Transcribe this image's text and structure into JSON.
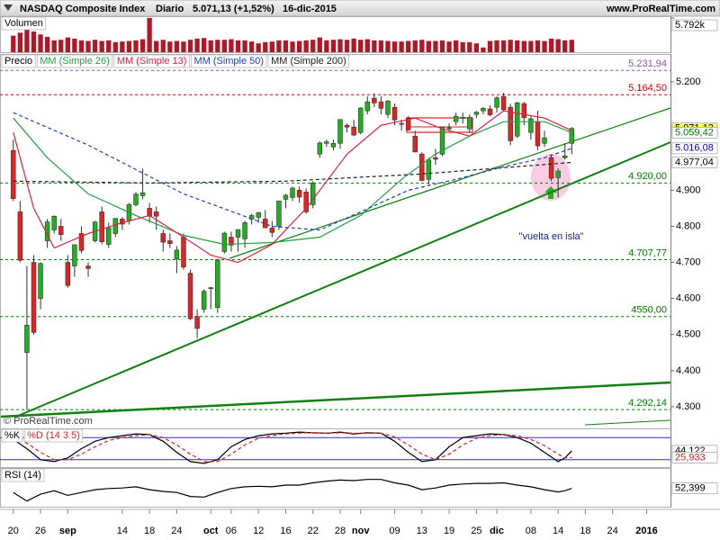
{
  "header": {
    "title": "NASDAQ Composite Index",
    "period": "Diario",
    "price": "5.071,13 (+1,52%)",
    "date": "16-dic-2015",
    "site": "www.ProRealTime.com"
  },
  "chart_data": [
    {
      "type": "bar",
      "title": "Volumen",
      "color": "#b01828",
      "ylim": [
        0,
        5792
      ],
      "yticks": [
        {
          "value": 5792,
          "label": "5.792k"
        }
      ],
      "values": [
        2800,
        3300,
        3900,
        3500,
        3000,
        2600,
        2000,
        2100,
        2500,
        2300,
        2000,
        1900,
        2100,
        1900,
        2000,
        1700,
        1800,
        1900,
        2000,
        2200,
        5792,
        1900,
        2100,
        1800,
        1900,
        1800,
        2100,
        2300,
        2400,
        2000,
        2100,
        2100,
        2200,
        2000,
        2000,
        1800,
        1500,
        1700,
        1800,
        2000,
        2000,
        1800,
        1900,
        2000,
        2100,
        2500,
        2000,
        2100,
        2200,
        2100,
        2300,
        2100,
        2200,
        2000,
        2000,
        1900,
        1800,
        1800,
        1900,
        2000,
        2100,
        1900,
        1900,
        2000,
        1800,
        2000,
        1700,
        1700,
        1500,
        800,
        1900,
        2000,
        2000,
        2100,
        2000,
        1900,
        1900,
        2000,
        1900,
        2300,
        2200,
        2000,
        2100,
        null,
        null,
        null,
        null,
        null,
        null,
        null,
        null,
        null,
        null,
        null,
        null,
        null,
        null
      ]
    },
    {
      "type": "candlestick",
      "title": "Precio",
      "up_color": "#22b022",
      "down_color": "#e82020",
      "copyright": "© ProRealTime.com",
      "annotation": "\"vuelta en isla\"",
      "categories": [
        "20",
        null,
        null,
        null,
        "26",
        null,
        null,
        null,
        "sep",
        null,
        null,
        null,
        null,
        null,
        null,
        null,
        "14",
        null,
        null,
        null,
        "18",
        null,
        null,
        null,
        "24",
        null,
        null,
        null,
        null,
        "oct",
        null,
        null,
        "06",
        null,
        null,
        null,
        "12",
        null,
        null,
        null,
        "16",
        null,
        null,
        null,
        "22",
        null,
        null,
        null,
        "28",
        null,
        null,
        "nov",
        null,
        null,
        null,
        null,
        "09",
        null,
        null,
        null,
        "13",
        null,
        null,
        null,
        "19",
        null,
        null,
        null,
        "25",
        null,
        null,
        "dic",
        null,
        null,
        null,
        null,
        "08",
        null,
        null,
        null,
        "14",
        null,
        null,
        null,
        "18",
        null,
        null,
        null,
        "24",
        null,
        null,
        null,
        null,
        "2016",
        null,
        null,
        null
      ],
      "open": [
        5010,
        4840,
        4450,
        4700,
        4600,
        4760,
        4790,
        4800,
        4700,
        4690,
        4780,
        4690,
        4760,
        4840,
        4750,
        4780,
        4820,
        4815,
        4860,
        4885,
        4850,
        4840,
        4780,
        4760,
        4710,
        4770,
        4670,
        4550,
        4570,
        4630,
        4575,
        4730,
        4770,
        4770,
        4765,
        4820,
        4825,
        4820,
        4795,
        4800,
        4875,
        4880,
        4900,
        4895,
        4860,
        5000,
        5030,
        5020,
        5030,
        5080,
        5075,
        5060,
        5120,
        5155,
        5145,
        5110,
        5130,
        5085,
        5100,
        5050,
        5000,
        4930,
        4990,
        5000,
        5070,
        5090,
        5100,
        5070,
        5110,
        5120,
        5125,
        5130,
        5160,
        5130,
        5050,
        5140,
        5060,
        5090,
        5030,
        4990,
        4935,
        4990,
        5030,
        null,
        null,
        null,
        null,
        null,
        null,
        null,
        null,
        null,
        null,
        null,
        null,
        null,
        null
      ],
      "high": [
        5040,
        4870,
        4690,
        4720,
        4700,
        4820,
        4830,
        4820,
        4720,
        4750,
        4800,
        4700,
        4815,
        4855,
        4810,
        4822,
        4826,
        4865,
        4895,
        4960,
        4865,
        4855,
        4790,
        4780,
        4745,
        4780,
        4680,
        4570,
        4625,
        4632,
        4710,
        4785,
        4785,
        4792,
        4815,
        4835,
        4840,
        4845,
        4815,
        4870,
        4890,
        4910,
        4910,
        4905,
        4925,
        5035,
        5040,
        5040,
        5096,
        5085,
        5095,
        5130,
        5160,
        5168,
        5160,
        5150,
        5140,
        5095,
        5105,
        5065,
        5005,
        4990,
        5015,
        5075,
        5085,
        5115,
        5115,
        5110,
        5120,
        5130,
        5135,
        5160,
        5170,
        5140,
        5145,
        5145,
        5105,
        5120,
        5065,
        5000,
        4960,
        5030,
        5075,
        null,
        null,
        null,
        null,
        null,
        null,
        null,
        null,
        null,
        null,
        null,
        null,
        null,
        null
      ],
      "low": [
        4870,
        4700,
        4292.14,
        4500,
        4570,
        4740,
        4780,
        4760,
        4630,
        4660,
        4725,
        4660,
        4755,
        4750,
        4740,
        4770,
        4790,
        4805,
        4855,
        4875,
        4810,
        4790,
        4730,
        4740,
        4670,
        4680,
        4540,
        4490,
        4560,
        4570,
        4560,
        4725,
        4730,
        4730,
        4740,
        4805,
        4810,
        4795,
        4770,
        4790,
        4850,
        4870,
        4865,
        4835,
        4850,
        4990,
        5020,
        5010,
        5015,
        5060,
        5050,
        5055,
        5110,
        5130,
        5110,
        5100,
        5080,
        5065,
        5065,
        5005,
        4925,
        4915,
        4970,
        4995,
        5065,
        5080,
        5085,
        5060,
        5100,
        5110,
        5105,
        5115,
        5120,
        5025,
        5045,
        5080,
        5040,
        5010,
        5020,
        4925,
        4880,
        4985,
        5000,
        null,
        null,
        null,
        null,
        null,
        null,
        null,
        null,
        null,
        null,
        null,
        null,
        null,
        null
      ],
      "close": [
        4877,
        4706,
        4526,
        4506,
        4697,
        4812,
        4828,
        4777,
        4636,
        4749,
        4733,
        4683,
        4812,
        4757,
        4796,
        4822,
        4806,
        4860,
        4889,
        4893,
        4828,
        4828,
        4756,
        4752,
        4734,
        4687,
        4544,
        4517,
        4620,
        4628,
        4707,
        4781,
        4748,
        4791,
        4810,
        4830,
        4838,
        4796,
        4783,
        4870,
        4886,
        4906,
        4881,
        4840,
        4920,
        5031,
        5034,
        5030,
        5096,
        5075,
        5053,
        5128,
        5145,
        5142,
        5127,
        5147,
        5095,
        5083,
        5067,
        5006,
        4927,
        4984,
        4986,
        5075,
        5073,
        5105,
        5102,
        5102,
        5116,
        5127,
        5109,
        5156,
        5123,
        5037,
        5142,
        5101,
        5098,
        5023,
        5045,
        4933,
        4953,
        4995,
        5071.13,
        null,
        null,
        null,
        null,
        null,
        null,
        null,
        null,
        null,
        null,
        null,
        null,
        null,
        null
      ],
      "series": [
        {
          "name": "MM (Simple 26)",
          "color": "#20a040",
          "dashed": false,
          "x": [
            0,
            5,
            11,
            18,
            25,
            31,
            38,
            45,
            51,
            57,
            62,
            67,
            72,
            78,
            82
          ],
          "values": [
            5100,
            4990,
            4890,
            4830,
            4775,
            4750,
            4755,
            4770,
            4830,
            4930,
            5000,
            5050,
            5090,
            5090,
            5059.42
          ]
        },
        {
          "name": "MM (Simple 13)",
          "color": "#e02040",
          "dashed": false,
          "x": [
            0,
            3,
            6,
            11,
            16,
            20,
            25,
            29,
            33,
            38,
            43,
            49,
            54,
            59,
            63,
            67,
            72,
            78,
            82
          ],
          "values": [
            5060,
            4850,
            4740,
            4780,
            4810,
            4830,
            4770,
            4720,
            4700,
            4750,
            4850,
            5000,
            5080,
            5100,
            5070,
            5050,
            5120,
            5100,
            5065
          ]
        },
        {
          "name": "MM (Simple 50)",
          "color": "#2040c0",
          "dashed": true,
          "x": [
            0,
            11,
            25,
            38,
            45,
            51,
            58,
            65,
            72,
            78,
            82
          ],
          "values": [
            5115,
            5025,
            4890,
            4800,
            4790,
            4840,
            4900,
            4930,
            4965,
            4990,
            5016.08
          ]
        },
        {
          "name": "MM (Simple 200)",
          "color": "#202020",
          "dashed": true,
          "x": [
            0,
            20,
            40,
            60,
            82
          ],
          "values": [
            4925,
            4920,
            4925,
            4945,
            4977.04
          ]
        }
      ],
      "ylim": [
        4240,
        5272.5
      ],
      "yticks": [
        {
          "value": 5200,
          "label": "5.200"
        },
        {
          "value": 4900,
          "label": "4.900"
        },
        {
          "value": 4800,
          "label": "4.800"
        },
        {
          "value": 4700,
          "label": "4.700"
        },
        {
          "value": 4600,
          "label": "4.600"
        },
        {
          "value": 4500,
          "label": "4.500"
        },
        {
          "value": 4400,
          "label": "4.400"
        },
        {
          "value": 4300,
          "label": "4.300"
        }
      ],
      "levels": [
        {
          "value": 5231.94,
          "label": "5.231,94",
          "color": "#9050b0",
          "dashed": true
        },
        {
          "value": 5164.5,
          "label": "5.164,50",
          "color": "#e00000",
          "dashed": true
        },
        {
          "value": 4920,
          "label": "4.920,00",
          "color": "#008000",
          "dashed": true
        },
        {
          "value": 4707.77,
          "label": "4.707,77",
          "color": "#008000",
          "dashed": true
        },
        {
          "value": 4550,
          "label": "4550,00",
          "color": "#008000",
          "dashed": true
        },
        {
          "value": 4292.14,
          "label": "4.292,14",
          "color": "#008000",
          "dashed": true
        }
      ],
      "price_tags": [
        {
          "value": 5071.13,
          "label": "5.071,13",
          "color": "#000000",
          "background": "#ffff66"
        },
        {
          "value": 5059.42,
          "label": "5.059,42",
          "color": "#008000",
          "background": "#ffffff"
        },
        {
          "value": 5016.08,
          "label": "5.016,08",
          "color": "#0000cc",
          "background": "#ffffff"
        },
        {
          "value": 4977.04,
          "label": "4.977,04",
          "color": "#000000",
          "background": "#ffffff"
        }
      ]
    },
    {
      "type": "line",
      "ylim": [
        0,
        100
      ],
      "levels": [
        {
          "value": 80,
          "color": "#3030c0",
          "dashed": false
        },
        {
          "value": 20,
          "color": "#3030c0",
          "dashed": false
        }
      ],
      "series": [
        {
          "name": "%K",
          "color": "#000000",
          "dashed": false,
          "tag": "44,122",
          "x": [
            0,
            2,
            4,
            6,
            8,
            10,
            12,
            14,
            16,
            18,
            20,
            22,
            24,
            26,
            28,
            30,
            32,
            34,
            36,
            38,
            40,
            42,
            44,
            46,
            48,
            50,
            52,
            54,
            56,
            58,
            60,
            62,
            64,
            66,
            68,
            70,
            72,
            74,
            76,
            78,
            80,
            81,
            82
          ],
          "values": [
            75,
            50,
            20,
            15,
            25,
            50,
            70,
            80,
            85,
            90,
            88,
            70,
            40,
            15,
            10,
            20,
            55,
            75,
            85,
            90,
            92,
            95,
            93,
            92,
            95,
            90,
            93,
            92,
            70,
            40,
            15,
            20,
            55,
            80,
            85,
            90,
            88,
            80,
            65,
            40,
            15,
            25,
            44.122
          ]
        },
        {
          "name": "%D (14 3 5)",
          "color": "#e02020",
          "dashed": true,
          "tag": "25,933",
          "x": [
            0,
            2,
            4,
            6,
            8,
            10,
            12,
            14,
            16,
            18,
            20,
            22,
            24,
            26,
            28,
            30,
            32,
            34,
            36,
            38,
            40,
            42,
            44,
            46,
            48,
            50,
            52,
            54,
            56,
            58,
            60,
            62,
            64,
            66,
            68,
            70,
            72,
            74,
            76,
            78,
            80,
            81,
            82
          ],
          "values": [
            80,
            65,
            40,
            20,
            20,
            35,
            55,
            72,
            80,
            85,
            88,
            80,
            60,
            35,
            15,
            15,
            35,
            60,
            78,
            85,
            90,
            92,
            94,
            92,
            93,
            92,
            92,
            92,
            82,
            60,
            35,
            20,
            35,
            60,
            78,
            85,
            88,
            85,
            75,
            58,
            35,
            25,
            25.933
          ]
        }
      ]
    },
    {
      "type": "line",
      "ylim": [
        20,
        85
      ],
      "series": [
        {
          "name": "RSI (14)",
          "color": "#000000",
          "dashed": false,
          "tag": "52,399",
          "x": [
            0,
            2,
            4,
            6,
            8,
            10,
            12,
            14,
            16,
            18,
            20,
            22,
            24,
            26,
            28,
            30,
            32,
            34,
            36,
            38,
            40,
            42,
            44,
            46,
            48,
            50,
            52,
            54,
            56,
            58,
            60,
            62,
            64,
            66,
            68,
            70,
            72,
            74,
            76,
            78,
            80,
            81,
            82
          ],
          "values": [
            45,
            30,
            42,
            48,
            40,
            45,
            50,
            52,
            53,
            55,
            50,
            47,
            45,
            38,
            37,
            45,
            52,
            55,
            56,
            55,
            58,
            58,
            62,
            65,
            67,
            66,
            68,
            68,
            62,
            58,
            50,
            53,
            58,
            60,
            61,
            61,
            62,
            58,
            55,
            50,
            46,
            48,
            52.399
          ]
        }
      ]
    }
  ]
}
